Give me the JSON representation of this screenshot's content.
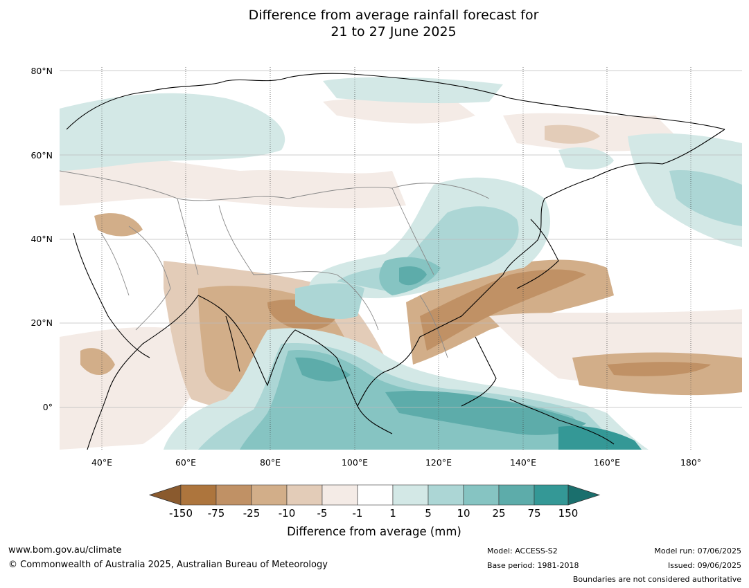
{
  "title_line1": "Difference from average rainfall forecast for",
  "title_line2": "21 to 27 June 2025",
  "lat_labels": [
    "80°N",
    "60°N",
    "40°N",
    "20°N",
    "0°"
  ],
  "lon_labels": [
    "40°E",
    "60°E",
    "80°E",
    "100°E",
    "120°E",
    "140°E",
    "160°E",
    "180°"
  ],
  "colorbar": {
    "title": "Difference from average (mm)",
    "tick_labels": [
      "-150",
      "-75",
      "-25",
      "-10",
      "-5",
      "-1",
      "1",
      "5",
      "10",
      "25",
      "75",
      "150"
    ],
    "colors": [
      "#8a5a2e",
      "#ad753d",
      "#c09165",
      "#d2ae89",
      "#e3ccb8",
      "#f4ebe6",
      "#ffffff",
      "#d3e8e6",
      "#acd6d5",
      "#86c4c2",
      "#5dacaa",
      "#349896",
      "#1a6f6d"
    ]
  },
  "footer": {
    "website": "www.bom.gov.au/climate",
    "copyright": "© Commonwealth of Australia 2025, Australian Bureau of Meteorology",
    "model": "Model: ACCESS-S2",
    "base_period": "Base period: 1981-2018",
    "model_run": "Model run: 07/06/2025",
    "issued": "Issued: 09/06/2025",
    "disclaimer": "Boundaries are not considered authoritative"
  }
}
